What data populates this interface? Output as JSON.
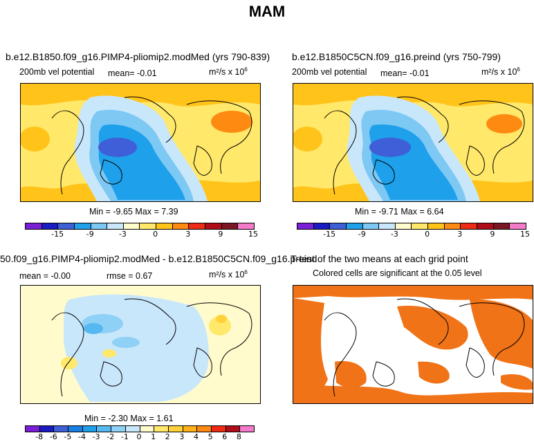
{
  "chart_data": [
    {
      "type": "heatmap",
      "title": "b.e12.B1850.f09_g16.PIMP4-pliomip2.modMed (yrs 790-839)",
      "left_label": "200mb vel potential",
      "mean_text": "mean=  -0.01",
      "units": "m²/s x 10",
      "units_exp": "6",
      "min_max_text": "Min =  -9.65 Max =   7.39",
      "colorbar_ticks": [
        "-15",
        "-9",
        "-3",
        "0",
        "3",
        "9",
        "15"
      ]
    },
    {
      "type": "heatmap",
      "title": "b.e12.B1850C5CN.f09_g16.preind (yrs 750-799)",
      "left_label": "200mb vel potential",
      "mean_text": "mean=  -0.01",
      "units": "m²/s x 10",
      "units_exp": "6",
      "min_max_text": "Min =  -9.71 Max =   6.64",
      "colorbar_ticks": [
        "-15",
        "-9",
        "-3",
        "0",
        "3",
        "9",
        "15"
      ]
    },
    {
      "type": "heatmap",
      "title": "50.f09_g16.PIMP4-pliomip2.modMed - b.e12.B1850C5CN.f09_g16.preind",
      "mean_text": "mean =  -0.00",
      "rmse_text": "rmse =   0.67",
      "units": "m²/s x 10",
      "units_exp": "6",
      "min_max_text": "Min =  -2.30 Max =   1.61",
      "colorbar_ticks": [
        "-8",
        "-6",
        "-5",
        "-4",
        "-3",
        "-2",
        "-1",
        "0",
        "1",
        "2",
        "3",
        "4",
        "5",
        "6",
        "8"
      ]
    },
    {
      "type": "heatmap",
      "title": "T-test of the two means at each grid point",
      "subtitle": "Colored cells are significant at the 0.05 level"
    }
  ],
  "page": {
    "season": "MAM"
  },
  "colors": {
    "cbar_main": [
      "#7a1fd6",
      "#1b1bc4",
      "#3f5fd8",
      "#1ea0ea",
      "#7ec8f4",
      "#c9e7fb",
      "#fffbcc",
      "#ffe86a",
      "#ffc31a",
      "#ff8a12",
      "#ee2b14",
      "#b00d1b",
      "#7a1722",
      "#f47bc9"
    ],
    "cbar_diff": [
      "#7a1fd6",
      "#1b1bc4",
      "#3f5fd8",
      "#1a7fe2",
      "#1ea0ea",
      "#56b8f0",
      "#8fd0f6",
      "#c9e7fb",
      "#fffbcc",
      "#ffe86a",
      "#ffd23a",
      "#ffb21a",
      "#ff8a12",
      "#ee2b14",
      "#b00d1b",
      "#f47bc9"
    ],
    "ttest": "#f07317"
  }
}
